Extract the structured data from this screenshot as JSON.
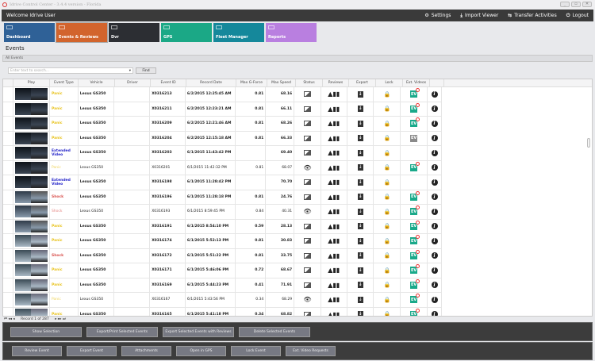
{
  "window": {
    "title": "Idrive Control Center - 3.4.4 version - Florida",
    "controls": [
      "_",
      "▫",
      "✕"
    ]
  },
  "header": {
    "welcome": "Welcome Idrive User",
    "nav": [
      {
        "icon": "gears-icon",
        "glyph": "⚙",
        "label": "Settings"
      },
      {
        "icon": "download-icon",
        "glyph": "⤓",
        "label": "Import Viewer"
      },
      {
        "icon": "transfer-icon",
        "glyph": "⇆",
        "label": "Transfer Activities"
      },
      {
        "icon": "power-icon",
        "glyph": "⏻",
        "label": "Logout"
      }
    ]
  },
  "tiles": [
    {
      "label": "Dashboard",
      "color": "#2f6197"
    },
    {
      "label": "Events & Reviews",
      "color": "#d2642d"
    },
    {
      "label": "Dvr",
      "color": "#2c2e33"
    },
    {
      "label": "GPS",
      "color": "#1ba886"
    },
    {
      "label": "Fleet Manager",
      "color": "#15889b"
    },
    {
      "label": "Reports",
      "color": "#b97fe0"
    }
  ],
  "page_title": "Events",
  "section": "All Events",
  "search": {
    "placeholder": "Enter text to search...",
    "find": "Find"
  },
  "columns": [
    "Play",
    "Event Type",
    "Vehicle",
    "Driver",
    "Event ID",
    "Record Date",
    "Max G-Force",
    "Max Speed",
    "Status",
    "Reviews",
    "Export",
    "Lock",
    "Ext. Videos",
    ""
  ],
  "type_colors": {
    "Panic": "#e8c21a",
    "Extended Video": "#2323c8",
    "Shock": "#d9534f"
  },
  "rows": [
    {
      "type": "Panic",
      "vehicle": "Lexus GS350",
      "driver": "",
      "id": "X0316213",
      "date": "6/2/2015 12:25:45 AM",
      "g": "0.81",
      "speed": "68.16",
      "status": "image",
      "ev": "new",
      "bold": true
    },
    {
      "type": "Panic",
      "vehicle": "Lexus GS350",
      "driver": "",
      "id": "X0316211",
      "date": "6/2/2015 12:23:21 AM",
      "g": "0.81",
      "speed": "66.11",
      "status": "image",
      "ev": "new",
      "bold": true
    },
    {
      "type": "Panic",
      "vehicle": "Lexus GS350",
      "driver": "",
      "id": "X0316209",
      "date": "6/2/2015 12:21:46 AM",
      "g": "0.81",
      "speed": "68.26",
      "status": "image",
      "ev": "new",
      "bold": true
    },
    {
      "type": "Panic",
      "vehicle": "Lexus GS350",
      "driver": "",
      "id": "X0316204",
      "date": "6/2/2015 12:15:18 AM",
      "g": "0.81",
      "speed": "66.33",
      "status": "image",
      "ev": "gray",
      "bold": true
    },
    {
      "type": "Extended Video",
      "vehicle": "Lexus GS350",
      "driver": "",
      "id": "X0316203",
      "date": "6/1/2015 11:43:42 PM",
      "g": "",
      "speed": "69.40",
      "status": "image",
      "ev": "",
      "bold": true
    },
    {
      "type": "Panic",
      "vehicle": "Lexus GS350",
      "driver": "",
      "id": "X0316201",
      "date": "6/1/2015 11:42:32 PM",
      "g": "0.81",
      "speed": "68.07",
      "status": "eye",
      "ev": "new",
      "bold": false
    },
    {
      "type": "Extended Video",
      "vehicle": "Lexus GS350",
      "driver": "",
      "id": "X0316198",
      "date": "6/1/2015 11:28:42 PM",
      "g": "",
      "speed": "70.70",
      "status": "image",
      "ev": "",
      "bold": true
    },
    {
      "type": "Shock",
      "vehicle": "Lexus GS350",
      "driver": "",
      "id": "X0316196",
      "date": "6/1/2015 11:28:18 PM",
      "g": "0.81",
      "speed": "24.76",
      "status": "image",
      "ev": "new",
      "bold": true
    },
    {
      "type": "Shock",
      "vehicle": "Lexus GS350",
      "driver": "",
      "id": "X0316193",
      "date": "6/1/2015 8:59:45 PM",
      "g": "0.84",
      "speed": "40.31",
      "status": "eye",
      "ev": "new",
      "bold": false
    },
    {
      "type": "Panic",
      "vehicle": "Lexus GS350",
      "driver": "",
      "id": "X0316191",
      "date": "6/1/2015 8:54:10 PM",
      "g": "0.59",
      "speed": "28.13",
      "status": "image",
      "ev": "new",
      "bold": true
    },
    {
      "type": "Panic",
      "vehicle": "Lexus GS350",
      "driver": "",
      "id": "X0316174",
      "date": "6/1/2015 5:52:13 PM",
      "g": "0.81",
      "speed": "30.83",
      "status": "image",
      "ev": "new",
      "bold": true
    },
    {
      "type": "Shock",
      "vehicle": "Lexus GS350",
      "driver": "",
      "id": "X0316172",
      "date": "6/1/2015 5:51:22 PM",
      "g": "0.81",
      "speed": "33.75",
      "status": "image",
      "ev": "new",
      "bold": true
    },
    {
      "type": "Panic",
      "vehicle": "Lexus GS350",
      "driver": "",
      "id": "X0316171",
      "date": "6/1/2015 5:46:06 PM",
      "g": "0.72",
      "speed": "68.67",
      "status": "image",
      "ev": "new",
      "bold": true
    },
    {
      "type": "Panic",
      "vehicle": "Lexus GS350",
      "driver": "",
      "id": "X0316169",
      "date": "6/1/2015 5:44:23 PM",
      "g": "0.41",
      "speed": "71.91",
      "status": "image",
      "ev": "new",
      "bold": true
    },
    {
      "type": "Panic",
      "vehicle": "Lexus GS350",
      "driver": "",
      "id": "X0316167",
      "date": "6/1/2015 5:43:56 PM",
      "g": "0.34",
      "speed": "68.29",
      "status": "eye",
      "ev": "new",
      "bold": false
    },
    {
      "type": "Panic",
      "vehicle": "Lexus GS350",
      "driver": "",
      "id": "X0316165",
      "date": "6/1/2015 5:41:18 PM",
      "g": "0.34",
      "speed": "68.82",
      "status": "image",
      "ev": "new",
      "bold": true
    }
  ],
  "pager": {
    "record": "Record 1 of 287"
  },
  "actions_top": [
    "Show Selection",
    "Export/Print Selected Events",
    "Export Selected Events with Reviews",
    "Delete Selected  Events"
  ],
  "actions_bottom": [
    "Review Event",
    "Export Event",
    "Attachments",
    "Open in GPS",
    "Lock Event",
    "Ext. Video Requests"
  ]
}
